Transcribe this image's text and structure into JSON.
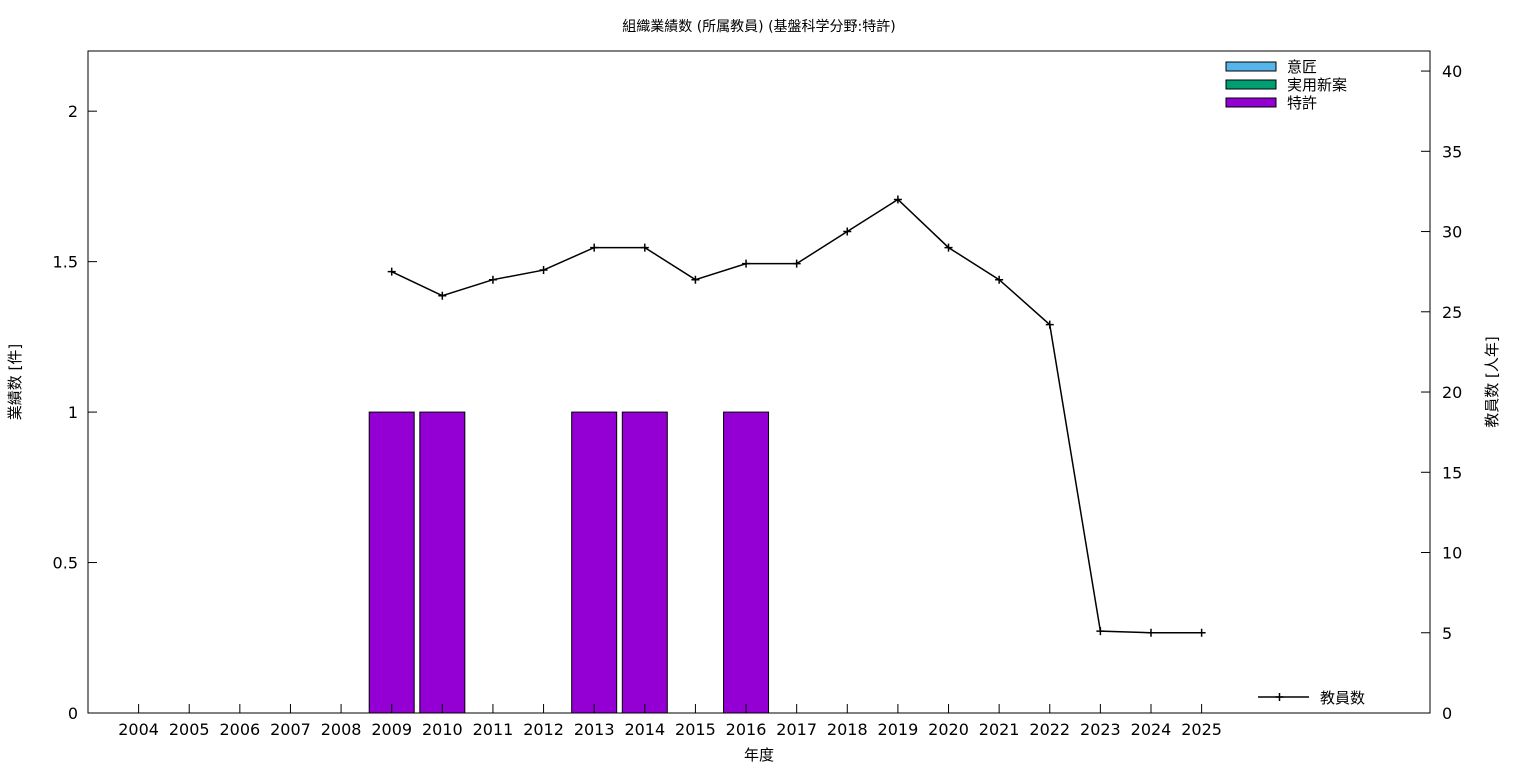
{
  "chart_data": {
    "type": "bar",
    "title": "組織業績数 (所属教員) (基盤科学分野:特許)",
    "xlabel": "年度",
    "ylabel": "業績数 [件]",
    "y2label": "教員数 [人年]",
    "categories": [
      "2004",
      "2005",
      "2006",
      "2007",
      "2008",
      "2009",
      "2010",
      "2011",
      "2012",
      "2013",
      "2014",
      "2015",
      "2016",
      "2017",
      "2018",
      "2019",
      "2020",
      "2021",
      "2022",
      "2023",
      "2024",
      "2025"
    ],
    "ylim": [
      0,
      2.2
    ],
    "y2lim": [
      0,
      41.25
    ],
    "yticks": [
      "0",
      "0.5",
      "1",
      "1.5",
      "2"
    ],
    "y2ticks": [
      "0",
      "5",
      "10",
      "15",
      "20",
      "25",
      "30",
      "35",
      "40"
    ],
    "grid": false,
    "legend_placement": "top-right",
    "bar_series": [
      {
        "name": "意匠",
        "color": "#56b4e9",
        "values": [
          0,
          0,
          0,
          0,
          0,
          0,
          0,
          0,
          0,
          0,
          0,
          0,
          0,
          0,
          0,
          0,
          0,
          0,
          0,
          0,
          0,
          0
        ]
      },
      {
        "name": "実用新案",
        "color": "#009e73",
        "values": [
          0,
          0,
          0,
          0,
          0,
          0,
          0,
          0,
          0,
          0,
          0,
          0,
          0,
          0,
          0,
          0,
          0,
          0,
          0,
          0,
          0,
          0
        ]
      },
      {
        "name": "特許",
        "color": "#9400d3",
        "values": [
          0,
          0,
          0,
          0,
          0,
          1,
          1,
          0,
          0,
          1,
          1,
          0,
          1,
          0,
          0,
          0,
          0,
          0,
          0,
          0,
          0,
          0
        ]
      }
    ],
    "line_series": {
      "name": "教員数",
      "color": "#000000",
      "axis": "right",
      "x": [
        "2009",
        "2010",
        "2011",
        "2012",
        "2013",
        "2014",
        "2015",
        "2016",
        "2017",
        "2018",
        "2019",
        "2020",
        "2021",
        "2022",
        "2023",
        "2024",
        "2025"
      ],
      "values": [
        27.5,
        26.0,
        27.0,
        27.6,
        29.0,
        29.0,
        27.0,
        28.0,
        28.0,
        30.0,
        32.0,
        29.0,
        27.0,
        24.2,
        5.1,
        5.0,
        5.0
      ]
    }
  }
}
